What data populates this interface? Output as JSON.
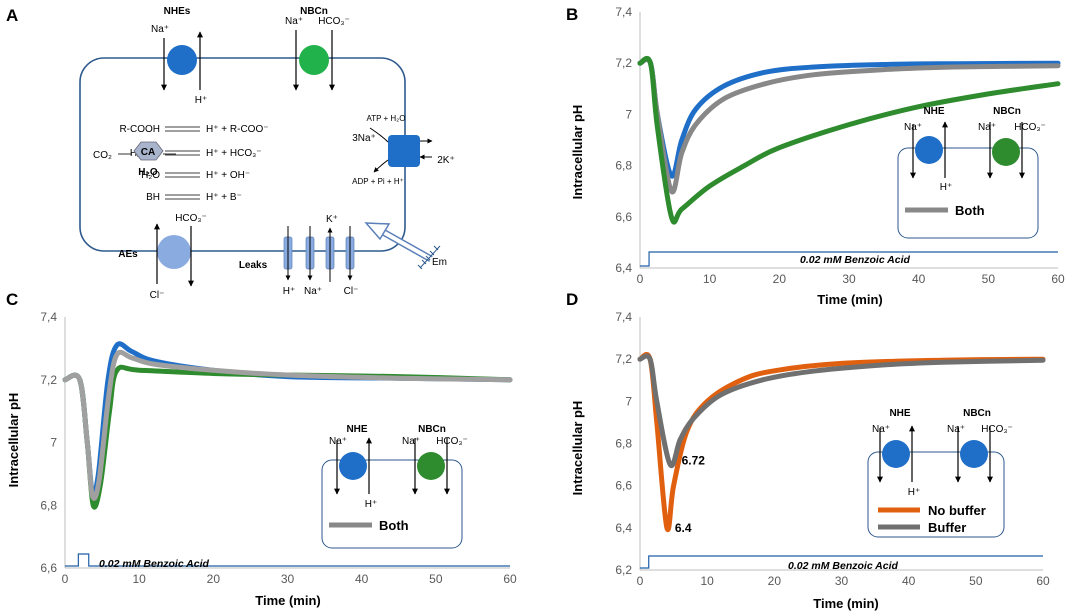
{
  "panels": {
    "a": {
      "letter": "A",
      "transporters": {
        "nhe": "NHEs",
        "nbc": "NBCn",
        "ae": "AEs",
        "leaks": "Leaks"
      },
      "ions": {
        "nhe_top": "Na⁺",
        "nhe_bottom": "H⁺",
        "nbc_na": "Na⁺",
        "nbc_hco3": "HCO₃⁻",
        "ae_top": "HCO₃⁻",
        "ae_bottom": "Cl⁻",
        "leak_k": "K⁺",
        "leak_h": "H⁺",
        "leak_na": "Na⁺",
        "leak_cl": "Cl⁻"
      },
      "pump": {
        "in": "3Na⁺",
        "out": "2K⁺",
        "atp": "ATP + H₂O",
        "adp": "ADP + Pi + H⁺"
      },
      "reactions": [
        {
          "left": "R-COOH",
          "right": "H⁺ +  R-COO⁻"
        },
        {
          "left": "H₂CO₃",
          "right": "H⁺ +  HCO₃⁻"
        },
        {
          "left": "H₂O",
          "right": "H⁺ +  OH⁻"
        },
        {
          "left": "BH",
          "right": "H⁺ +  B⁻"
        }
      ],
      "co2": "CO₂",
      "ca": "CA",
      "h2o": "H₂O",
      "em": "Em"
    },
    "b": {
      "letter": "B"
    },
    "c": {
      "letter": "C"
    },
    "d": {
      "letter": "D"
    }
  },
  "shared": {
    "ylabel": "Intracellular pH",
    "xlabel": "Time (min)",
    "pulse_label": "0.02 mM Benzoic Acid",
    "inset": {
      "nhe": "NHE",
      "nbc": "NBCn",
      "na": "Na⁺",
      "h": "H⁺",
      "hco3": "HCO₃⁻"
    }
  },
  "legends": {
    "both": "Both",
    "no_buffer": "No buffer",
    "buffer": "Buffer"
  },
  "colors": {
    "nhe": "#1f6fc8",
    "nbc": "#2e8b2e",
    "both": "#888888",
    "no_buffer": "#e06010",
    "buffer": "#707070",
    "frame": "#2e5a8e"
  },
  "chart_data": [
    {
      "panel": "B",
      "type": "line",
      "xlabel": "Time (min)",
      "ylabel": "Intracellular pH",
      "xlim": [
        0,
        60
      ],
      "ylim": [
        6.4,
        7.4
      ],
      "xticks": [
        0,
        10,
        20,
        30,
        40,
        50,
        60
      ],
      "yticks": [
        "6,4",
        "6,6",
        "6,8",
        "7",
        "7,2",
        "7,4"
      ],
      "series": [
        {
          "name": "NHE",
          "color": "#1f6fc8",
          "points": [
            [
              0,
              7.2
            ],
            [
              1.5,
              7.2
            ],
            [
              2.5,
              7.0
            ],
            [
              4.5,
              6.76
            ],
            [
              6,
              6.9
            ],
            [
              8,
              7.02
            ],
            [
              12,
              7.11
            ],
            [
              18,
              7.165
            ],
            [
              25,
              7.185
            ],
            [
              35,
              7.195
            ],
            [
              45,
              7.198
            ],
            [
              60,
              7.2
            ]
          ]
        },
        {
          "name": "Both",
          "color": "#888888",
          "points": [
            [
              0,
              7.2
            ],
            [
              1.5,
              7.2
            ],
            [
              2.5,
              7.0
            ],
            [
              4.5,
              6.7
            ],
            [
              6,
              6.85
            ],
            [
              8,
              6.96
            ],
            [
              12,
              7.06
            ],
            [
              18,
              7.12
            ],
            [
              25,
              7.155
            ],
            [
              35,
              7.175
            ],
            [
              45,
              7.185
            ],
            [
              60,
              7.19
            ]
          ]
        },
        {
          "name": "NBCn",
          "color": "#2e8b2e",
          "points": [
            [
              0,
              7.2
            ],
            [
              1.5,
              7.2
            ],
            [
              2.5,
              6.95
            ],
            [
              4.5,
              6.6
            ],
            [
              6,
              6.63
            ],
            [
              10,
              6.72
            ],
            [
              15,
              6.8
            ],
            [
              20,
              6.87
            ],
            [
              30,
              6.96
            ],
            [
              40,
              7.03
            ],
            [
              50,
              7.08
            ],
            [
              60,
              7.12
            ]
          ]
        }
      ],
      "pulse": {
        "label": "0.02 mM Benzoic Acid",
        "start": 1.3,
        "end": 60
      }
    },
    {
      "panel": "C",
      "type": "line",
      "xlabel": "Time (min)",
      "ylabel": "Intracellular pH",
      "xlim": [
        0,
        60
      ],
      "ylim": [
        6.6,
        7.4
      ],
      "xticks": [
        0,
        10,
        20,
        30,
        40,
        50,
        60
      ],
      "yticks": [
        "6,6",
        "6,8",
        "7",
        "7,2",
        "7,4"
      ],
      "series": [
        {
          "name": "NHE",
          "color": "#1f6fc8",
          "points": [
            [
              0,
              7.2
            ],
            [
              2,
              7.2
            ],
            [
              3,
              7.0
            ],
            [
              3.7,
              6.84
            ],
            [
              4.5,
              6.9
            ],
            [
              5.8,
              7.2
            ],
            [
              7,
              7.31
            ],
            [
              9,
              7.29
            ],
            [
              12,
              7.26
            ],
            [
              20,
              7.23
            ],
            [
              30,
              7.21
            ],
            [
              45,
              7.205
            ],
            [
              60,
              7.2
            ]
          ]
        },
        {
          "name": "NBCn",
          "color": "#2e8b2e",
          "points": [
            [
              0,
              7.2
            ],
            [
              2,
              7.2
            ],
            [
              3,
              7.0
            ],
            [
              3.8,
              6.8
            ],
            [
              4.8,
              6.87
            ],
            [
              6,
              7.1
            ],
            [
              7,
              7.23
            ],
            [
              10,
              7.23
            ],
            [
              20,
              7.22
            ],
            [
              30,
              7.215
            ],
            [
              45,
              7.21
            ],
            [
              60,
              7.2
            ]
          ]
        },
        {
          "name": "Both",
          "color": "#a0a0a0",
          "points": [
            [
              0,
              7.2
            ],
            [
              2,
              7.2
            ],
            [
              3,
              7.0
            ],
            [
              3.7,
              6.83
            ],
            [
              4.6,
              6.88
            ],
            [
              5.9,
              7.15
            ],
            [
              7,
              7.28
            ],
            [
              9,
              7.27
            ],
            [
              12,
              7.25
            ],
            [
              20,
              7.23
            ],
            [
              30,
              7.215
            ],
            [
              45,
              7.205
            ],
            [
              60,
              7.2
            ]
          ]
        }
      ],
      "pulse": {
        "label": "0.02 mM Benzoic Acid",
        "start": 1.8,
        "end": 3.2
      }
    },
    {
      "panel": "D",
      "type": "line",
      "xlabel": "Time (min)",
      "ylabel": "Intracellular pH",
      "xlim": [
        0,
        60
      ],
      "ylim": [
        6.2,
        7.4
      ],
      "xticks": [
        0,
        10,
        20,
        30,
        40,
        50,
        60
      ],
      "yticks": [
        "6,2",
        "6,4",
        "6,6",
        "6,8",
        "7",
        "7,2",
        "7,4"
      ],
      "annotations": [
        {
          "text": "6.72",
          "x": 5,
          "y": 6.72
        },
        {
          "text": "6.4",
          "x": 4,
          "y": 6.4
        }
      ],
      "series": [
        {
          "name": "No buffer",
          "color": "#e06010",
          "points": [
            [
              0,
              7.2
            ],
            [
              1.5,
              7.2
            ],
            [
              2.5,
              6.9
            ],
            [
              4,
              6.4
            ],
            [
              5,
              6.6
            ],
            [
              7,
              6.86
            ],
            [
              10,
              7.0
            ],
            [
              15,
              7.1
            ],
            [
              20,
              7.145
            ],
            [
              30,
              7.18
            ],
            [
              45,
              7.195
            ],
            [
              60,
              7.2
            ]
          ]
        },
        {
          "name": "Buffer",
          "color": "#707070",
          "points": [
            [
              0,
              7.2
            ],
            [
              1.5,
              7.2
            ],
            [
              2.5,
              7.0
            ],
            [
              4.5,
              6.7
            ],
            [
              6,
              6.82
            ],
            [
              8,
              6.92
            ],
            [
              12,
              7.03
            ],
            [
              18,
              7.1
            ],
            [
              25,
              7.14
            ],
            [
              35,
              7.17
            ],
            [
              45,
              7.185
            ],
            [
              60,
              7.195
            ]
          ]
        }
      ],
      "pulse": {
        "label": "0.02 mM Benzoic Acid",
        "start": 1.3,
        "end": 60
      }
    }
  ]
}
